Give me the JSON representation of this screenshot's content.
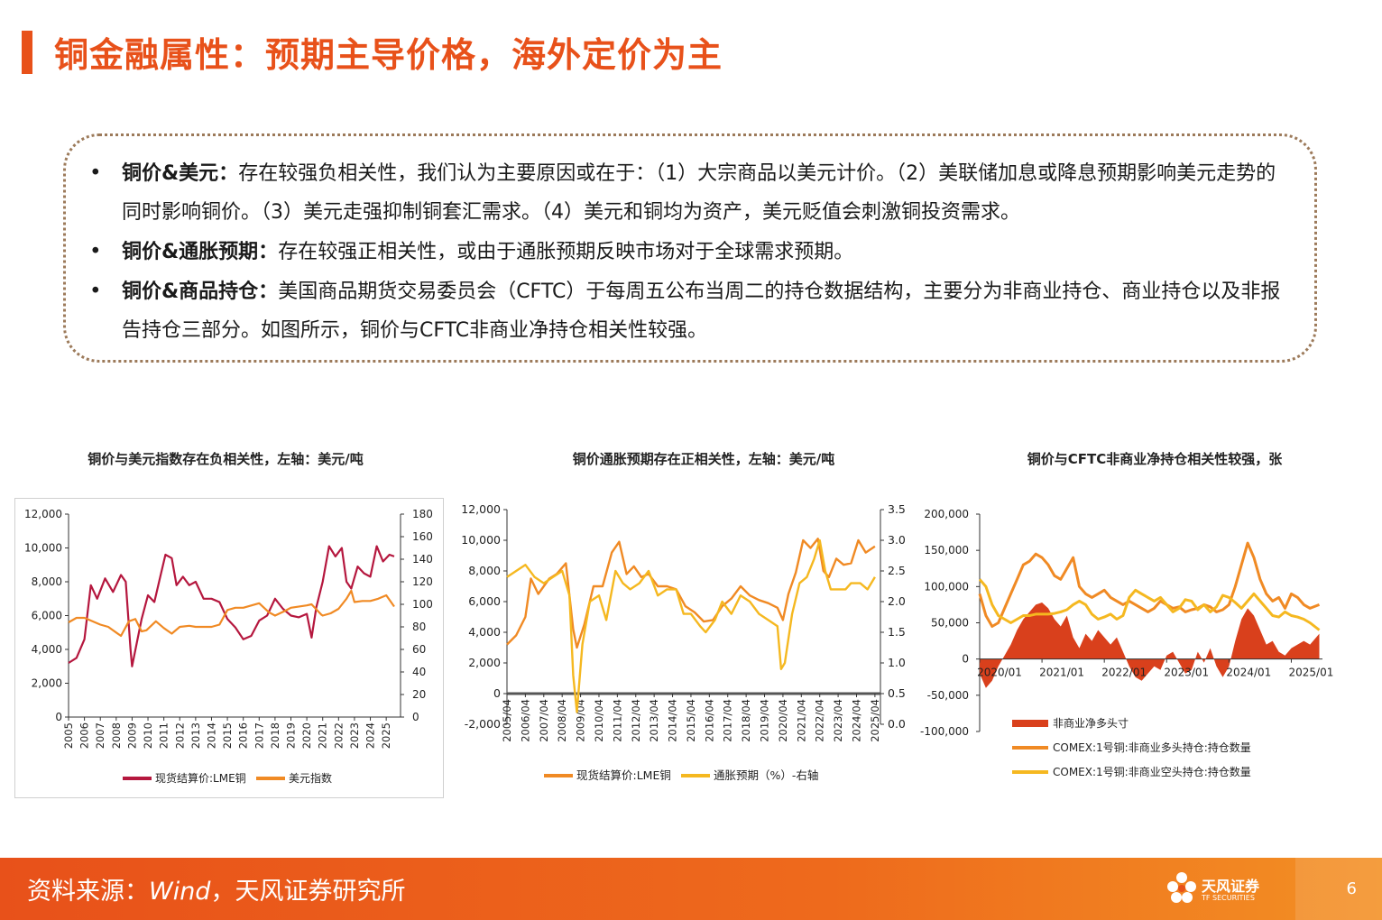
{
  "page": {
    "title": "铜金融属性：预期主导价格，海外定价为主",
    "page_number": "6",
    "accent_color": "#e8511a"
  },
  "summary": {
    "bullets": [
      {
        "label": "铜价&美元：",
        "text": "存在较强负相关性，我们认为主要原因或在于：（1）大宗商品以美元计价。（2）美联储加息或降息预期影响美元走势的同时影响铜价。（3）美元走强抑制铜套汇需求。（4）美元和铜均为资产，美元贬值会刺激铜投资需求。"
      },
      {
        "label": "铜价&通胀预期：",
        "text": "存在较强正相关性，或由于通胀预期反映市场对于全球需求预期。"
      },
      {
        "label": "铜价&商品持仓：",
        "text": "美国商品期货交易委员会（CFTC）于每周五公布当周二的持仓数据结构，主要分为非商业持仓、商业持仓以及非报告持仓三部分。如图所示，铜价与CFTC非商业净持仓相关性较强。"
      }
    ]
  },
  "footer": {
    "source_prefix": "资料来源：",
    "source_wind": "Wind",
    "source_suffix": "，天风证券研究所",
    "logo_text": "天风证券",
    "logo_sub": "TF SECURITIES"
  },
  "chart_data": [
    {
      "type": "line",
      "title": "铜价与美元指数存在负相关性，左轴：美元/吨",
      "x_ticks": [
        "2005",
        "2006",
        "2007",
        "2008",
        "2009",
        "2010",
        "2011",
        "2012",
        "2013",
        "2014",
        "2015",
        "2016",
        "2017",
        "2018",
        "2019",
        "2020",
        "2021",
        "2022",
        "2023",
        "2024",
        "2025"
      ],
      "y_left": {
        "min": 0,
        "max": 12000,
        "ticks": [
          "0",
          "2,000",
          "4,000",
          "6,000",
          "8,000",
          "10,000",
          "12,000"
        ]
      },
      "y_right": {
        "min": 0,
        "max": 180,
        "ticks": [
          "0",
          "20",
          "40",
          "60",
          "80",
          "100",
          "120",
          "140",
          "160",
          "180"
        ]
      },
      "series": [
        {
          "name": "现货结算价:LME铜",
          "axis": "left",
          "color": "#b5173e",
          "x": [
            2005.0,
            2005.5,
            2006.0,
            2006.4,
            2006.8,
            2007.3,
            2007.8,
            2008.3,
            2008.6,
            2008.9,
            2009.0,
            2009.3,
            2009.6,
            2010.0,
            2010.4,
            2010.8,
            2011.1,
            2011.5,
            2011.8,
            2012.2,
            2012.6,
            2013.0,
            2013.5,
            2014.0,
            2014.5,
            2015.0,
            2015.5,
            2016.0,
            2016.5,
            2017.0,
            2017.5,
            2018.0,
            2018.5,
            2019.0,
            2019.5,
            2020.0,
            2020.3,
            2020.6,
            2021.0,
            2021.4,
            2021.8,
            2022.2,
            2022.5,
            2022.8,
            2023.2,
            2023.6,
            2024.0,
            2024.4,
            2024.8,
            2025.2,
            2025.5
          ],
          "y": [
            3200,
            3500,
            4600,
            7800,
            7000,
            8200,
            7400,
            8400,
            8000,
            4000,
            3000,
            4400,
            5800,
            7200,
            6800,
            8400,
            9600,
            9400,
            7800,
            8300,
            7800,
            8000,
            7000,
            7000,
            6800,
            5800,
            5300,
            4600,
            4800,
            5700,
            6000,
            7000,
            6400,
            6000,
            5900,
            6100,
            4700,
            6500,
            8000,
            10100,
            9500,
            10000,
            8000,
            7600,
            8900,
            8500,
            8300,
            10100,
            9200,
            9600,
            9500
          ]
        },
        {
          "name": "美元指数",
          "axis": "right",
          "color": "#f08a24",
          "x": [
            2005.0,
            2005.5,
            2006.0,
            2006.5,
            2007.0,
            2007.5,
            2008.0,
            2008.3,
            2008.8,
            2009.2,
            2009.6,
            2009.9,
            2010.5,
            2011.0,
            2011.5,
            2012.0,
            2012.6,
            2013.0,
            2014.0,
            2014.5,
            2015.0,
            2015.5,
            2016.0,
            2017.0,
            2017.6,
            2018.0,
            2018.6,
            2019.0,
            2020.0,
            2020.3,
            2020.9,
            2021.0,
            2021.5,
            2022.0,
            2022.5,
            2022.8,
            2023.0,
            2023.5,
            2024.0,
            2024.5,
            2025.0,
            2025.5
          ],
          "y": [
            84,
            88,
            88,
            85,
            82,
            80,
            75,
            72,
            85,
            87,
            76,
            77,
            85,
            79,
            74,
            80,
            81,
            80,
            80,
            82,
            95,
            97,
            97,
            101,
            93,
            90,
            94,
            97,
            99,
            100,
            91,
            90,
            92,
            96,
            105,
            112,
            102,
            103,
            103,
            105,
            108,
            98
          ]
        }
      ],
      "legend_position": "bottom"
    },
    {
      "type": "line",
      "title": "铜价通胀预期存在正相关性，左轴：美元/吨",
      "x_ticks": [
        "2005/04",
        "2006/04",
        "2007/04",
        "2008/04",
        "2009/04",
        "2010/04",
        "2011/04",
        "2012/04",
        "2013/04",
        "2014/04",
        "2015/04",
        "2016/04",
        "2017/04",
        "2018/04",
        "2019/04",
        "2020/04",
        "2021/04",
        "2022/04",
        "2023/04",
        "2024/04",
        "2025/04"
      ],
      "y_left": {
        "min": -2000,
        "max": 12000,
        "ticks": [
          "-2,000",
          "0",
          "2,000",
          "4,000",
          "6,000",
          "8,000",
          "10,000",
          "12,000"
        ]
      },
      "y_right": {
        "min": 0.0,
        "max": 3.5,
        "ticks": [
          "0.0",
          "0.5",
          "1.0",
          "1.5",
          "2.0",
          "2.5",
          "3.0",
          "3.5"
        ]
      },
      "series": [
        {
          "name": "现货结算价:LME铜",
          "axis": "left",
          "color": "#f08a24",
          "x": [
            2005.3,
            2005.8,
            2006.3,
            2006.6,
            2007.0,
            2007.6,
            2008.0,
            2008.5,
            2008.9,
            2009.1,
            2009.5,
            2010.0,
            2010.5,
            2011.0,
            2011.4,
            2011.8,
            2012.2,
            2012.6,
            2013.0,
            2013.5,
            2014.0,
            2014.5,
            2015.0,
            2015.5,
            2016.0,
            2016.5,
            2017.0,
            2017.5,
            2018.0,
            2018.5,
            2019.0,
            2019.5,
            2020.0,
            2020.3,
            2020.6,
            2021.0,
            2021.4,
            2021.8,
            2022.2,
            2022.5,
            2022.8,
            2023.2,
            2023.6,
            2024.0,
            2024.4,
            2024.8,
            2025.3
          ],
          "y": [
            3200,
            3800,
            5000,
            7500,
            6500,
            7500,
            7800,
            8500,
            4200,
            3000,
            4500,
            7000,
            7000,
            9200,
            9900,
            7800,
            8300,
            7600,
            7800,
            7000,
            7000,
            6800,
            5700,
            5300,
            4700,
            4800,
            5700,
            6200,
            7000,
            6400,
            6100,
            5900,
            5600,
            4800,
            6500,
            7900,
            10000,
            9500,
            10100,
            8000,
            7600,
            8800,
            8400,
            8500,
            10000,
            9200,
            9600
          ]
        },
        {
          "name": "通胀预期（%）-右轴",
          "axis": "right",
          "color": "#f5b820",
          "x": [
            2005.3,
            2005.8,
            2006.3,
            2006.8,
            2007.3,
            2007.8,
            2008.3,
            2008.7,
            2008.9,
            2009.1,
            2009.4,
            2009.8,
            2010.3,
            2010.7,
            2011.2,
            2011.6,
            2012.0,
            2012.5,
            2013.0,
            2013.5,
            2014.0,
            2014.5,
            2014.9,
            2015.3,
            2015.8,
            2016.1,
            2016.6,
            2017.0,
            2017.5,
            2018.0,
            2018.5,
            2019.0,
            2019.5,
            2020.0,
            2020.2,
            2020.4,
            2020.8,
            2021.2,
            2021.6,
            2022.0,
            2022.3,
            2022.6,
            2022.9,
            2023.3,
            2023.7,
            2024.0,
            2024.5,
            2024.9,
            2025.3
          ],
          "y": [
            2.4,
            2.5,
            2.6,
            2.4,
            2.3,
            2.4,
            2.5,
            2.1,
            0.8,
            0.2,
            1.3,
            2.0,
            2.1,
            1.7,
            2.5,
            2.3,
            2.2,
            2.3,
            2.5,
            2.1,
            2.2,
            2.2,
            1.8,
            1.8,
            1.6,
            1.5,
            1.7,
            2.0,
            1.8,
            2.1,
            2.0,
            1.8,
            1.7,
            1.6,
            0.9,
            1.0,
            1.8,
            2.3,
            2.4,
            2.7,
            3.0,
            2.5,
            2.2,
            2.2,
            2.2,
            2.3,
            2.3,
            2.2,
            2.4
          ]
        }
      ],
      "legend_position": "bottom"
    },
    {
      "type": "area",
      "title": "铜价与CFTC非商业净持仓相关性较强，张",
      "x_ticks": [
        "2020/01",
        "2021/01",
        "2022/01",
        "2023/01",
        "2024/01",
        "2025/01"
      ],
      "y_left": {
        "min": -100000,
        "max": 200000,
        "ticks": [
          "-100,000",
          "-50,000",
          "0",
          "50,000",
          "100,000",
          "150,000",
          "200,000"
        ]
      },
      "series": [
        {
          "name": "非商业净多头寸",
          "type": "area",
          "color": "#d9401c",
          "x": [
            2020.0,
            2020.1,
            2020.2,
            2020.3,
            2020.4,
            2020.5,
            2020.6,
            2020.7,
            2020.8,
            2020.9,
            2021.0,
            2021.1,
            2021.2,
            2021.3,
            2021.4,
            2021.5,
            2021.6,
            2021.7,
            2021.8,
            2021.9,
            2022.0,
            2022.1,
            2022.2,
            2022.3,
            2022.4,
            2022.5,
            2022.6,
            2022.7,
            2022.8,
            2022.9,
            2023.0,
            2023.1,
            2023.2,
            2023.3,
            2023.4,
            2023.5,
            2023.6,
            2023.7,
            2023.8,
            2023.9,
            2024.0,
            2024.1,
            2024.2,
            2024.3,
            2024.4,
            2024.5,
            2024.6,
            2024.7,
            2024.8,
            2024.9,
            2025.0,
            2025.1,
            2025.2,
            2025.3,
            2025.45
          ],
          "y": [
            -20000,
            -40000,
            -30000,
            -10000,
            5000,
            20000,
            40000,
            55000,
            65000,
            75000,
            78000,
            70000,
            55000,
            45000,
            60000,
            30000,
            15000,
            35000,
            25000,
            40000,
            30000,
            20000,
            30000,
            10000,
            -10000,
            -25000,
            -30000,
            -20000,
            -10000,
            -15000,
            5000,
            10000,
            -5000,
            -20000,
            -15000,
            10000,
            -5000,
            15000,
            -10000,
            -25000,
            -10000,
            25000,
            55000,
            70000,
            60000,
            40000,
            20000,
            25000,
            10000,
            5000,
            15000,
            20000,
            25000,
            20000,
            35000
          ]
        },
        {
          "name": "COMEX:1号铜:非商业多头持仓:持仓数量",
          "type": "line",
          "color": "#f08a24",
          "x": [
            2020.0,
            2020.1,
            2020.2,
            2020.3,
            2020.4,
            2020.5,
            2020.6,
            2020.7,
            2020.8,
            2020.9,
            2021.0,
            2021.1,
            2021.2,
            2021.3,
            2021.4,
            2021.5,
            2021.6,
            2021.7,
            2021.8,
            2021.9,
            2022.0,
            2022.1,
            2022.2,
            2022.3,
            2022.4,
            2022.5,
            2022.6,
            2022.7,
            2022.8,
            2022.9,
            2023.0,
            2023.1,
            2023.2,
            2023.3,
            2023.4,
            2023.5,
            2023.6,
            2023.7,
            2023.8,
            2023.9,
            2024.0,
            2024.1,
            2024.2,
            2024.3,
            2024.4,
            2024.5,
            2024.6,
            2024.7,
            2024.8,
            2024.9,
            2025.0,
            2025.1,
            2025.2,
            2025.3,
            2025.45
          ],
          "y": [
            90000,
            60000,
            45000,
            50000,
            70000,
            90000,
            110000,
            130000,
            135000,
            145000,
            140000,
            130000,
            115000,
            110000,
            125000,
            140000,
            100000,
            90000,
            85000,
            90000,
            95000,
            85000,
            80000,
            75000,
            80000,
            75000,
            70000,
            65000,
            70000,
            80000,
            75000,
            70000,
            72000,
            65000,
            68000,
            70000,
            75000,
            72000,
            65000,
            68000,
            75000,
            100000,
            130000,
            160000,
            140000,
            110000,
            90000,
            80000,
            85000,
            70000,
            90000,
            85000,
            75000,
            70000,
            75000
          ]
        },
        {
          "name": "COMEX:1号铜:非商业空头持仓:持仓数量",
          "type": "line",
          "color": "#f5b820",
          "x": [
            2020.0,
            2020.1,
            2020.2,
            2020.3,
            2020.4,
            2020.5,
            2020.6,
            2020.7,
            2020.8,
            2020.9,
            2021.0,
            2021.1,
            2021.2,
            2021.3,
            2021.4,
            2021.5,
            2021.6,
            2021.7,
            2021.8,
            2021.9,
            2022.0,
            2022.1,
            2022.2,
            2022.3,
            2022.4,
            2022.5,
            2022.6,
            2022.7,
            2022.8,
            2022.9,
            2023.0,
            2023.1,
            2023.2,
            2023.3,
            2023.4,
            2023.5,
            2023.6,
            2023.7,
            2023.8,
            2023.9,
            2024.0,
            2024.1,
            2024.2,
            2024.3,
            2024.4,
            2024.5,
            2024.6,
            2024.7,
            2024.8,
            2024.9,
            2025.0,
            2025.1,
            2025.2,
            2025.3,
            2025.45
          ],
          "y": [
            110000,
            100000,
            75000,
            60000,
            55000,
            50000,
            55000,
            60000,
            60000,
            62000,
            62000,
            62000,
            63000,
            65000,
            68000,
            75000,
            80000,
            75000,
            62000,
            55000,
            58000,
            62000,
            55000,
            60000,
            85000,
            95000,
            90000,
            85000,
            80000,
            85000,
            75000,
            65000,
            70000,
            82000,
            80000,
            68000,
            75000,
            65000,
            72000,
            88000,
            85000,
            78000,
            70000,
            80000,
            90000,
            80000,
            70000,
            60000,
            58000,
            65000,
            60000,
            58000,
            55000,
            50000,
            40000
          ]
        }
      ],
      "legend_position": "bottom"
    }
  ]
}
